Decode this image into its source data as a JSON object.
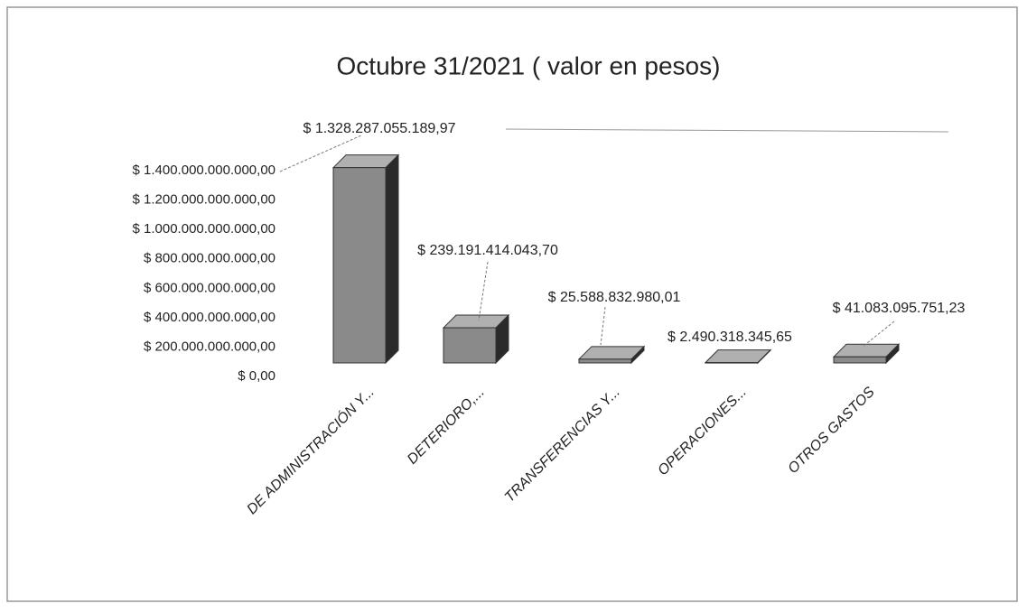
{
  "chart_data": {
    "type": "bar3d",
    "title": "Octubre 31/2021 ( valor en pesos)",
    "categories": [
      "DE ADMINISTRACIÓN Y...",
      "DETERIORO,...",
      "TRANSFERENCIAS Y...",
      "OPERACIONES...",
      "OTROS GASTOS"
    ],
    "values": [
      1328287055189.97,
      239191414043.7,
      25588832980.01,
      2490318345.65,
      41083095751.23
    ],
    "value_labels": [
      "$ 1.328.287.055.189,97",
      "$ 239.191.414.043,70",
      "$ 25.588.832.980,01",
      "$ 2.490.318.345,65",
      "$ 41.083.095.751,23"
    ],
    "color": "#8a8a8a",
    "ylim": [
      0,
      1400000000000
    ],
    "yticks": [
      {
        "value": 0,
        "label": "$ 0,00"
      },
      {
        "value": 200000000000,
        "label": "$ 200.000.000.000,00"
      },
      {
        "value": 400000000000,
        "label": "$ 400.000.000.000,00"
      },
      {
        "value": 600000000000,
        "label": "$ 600.000.000.000,00"
      },
      {
        "value": 800000000000,
        "label": "$ 800.000.000.000,00"
      },
      {
        "value": 1000000000000,
        "label": "$ 1.000.000.000.000,00"
      },
      {
        "value": 1200000000000,
        "label": "$ 1.200.000.000.000,00"
      },
      {
        "value": 1400000000000,
        "label": "$ 1.400.000.000.000,00"
      }
    ]
  }
}
